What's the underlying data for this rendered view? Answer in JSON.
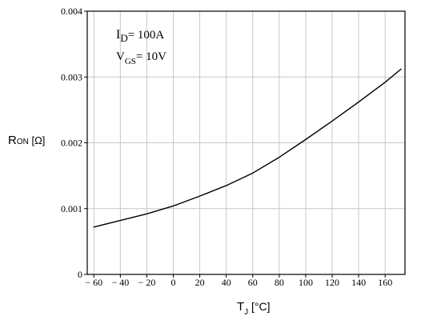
{
  "chart_data": {
    "type": "line",
    "series": [
      {
        "x": [
          -60,
          -40,
          -20,
          0,
          20,
          40,
          60,
          80,
          100,
          120,
          140,
          160,
          172
        ],
        "values": [
          0.00072,
          0.00082,
          0.00092,
          0.00104,
          0.00119,
          0.00135,
          0.00154,
          0.00178,
          0.00205,
          0.00233,
          0.00262,
          0.00292,
          0.00312
        ]
      }
    ],
    "xlim": [
      -65,
      175
    ],
    "ylim": [
      0,
      0.004
    ],
    "x_ticks": [
      -60,
      -40,
      -20,
      0,
      20,
      40,
      60,
      80,
      100,
      120,
      140,
      160
    ],
    "x_tick_labels": [
      "− 60",
      "− 40",
      "− 20",
      "0",
      "20",
      "40",
      "60",
      "80",
      "100",
      "120",
      "140",
      "160"
    ],
    "y_ticks": [
      0,
      0.001,
      0.002,
      0.003,
      0.004
    ],
    "y_tick_labels": [
      "0",
      "0.001",
      "0.002",
      "0.003",
      "0.004"
    ],
    "x_grid_values": [
      -60,
      -40,
      -20,
      0,
      20,
      40,
      60,
      80,
      100,
      120,
      140,
      160
    ],
    "y_grid_values": [
      0.001,
      0.002,
      0.003
    ],
    "grid": true,
    "xlabel": {
      "main": "T",
      "sub": "J",
      "unit": " [°C]"
    },
    "ylabel": {
      "main": "R",
      "sub": "ON",
      "unit": " [Ω]"
    },
    "annotations": [
      {
        "main": "I",
        "sub": "D",
        "value": "= 100A"
      },
      {
        "main": "V",
        "sub": "GS",
        "value": "= 10V"
      }
    ],
    "colors": {
      "line": "#000000",
      "grid": "#c8c8c8",
      "axis": "#000000",
      "background": "#ffffff"
    }
  }
}
